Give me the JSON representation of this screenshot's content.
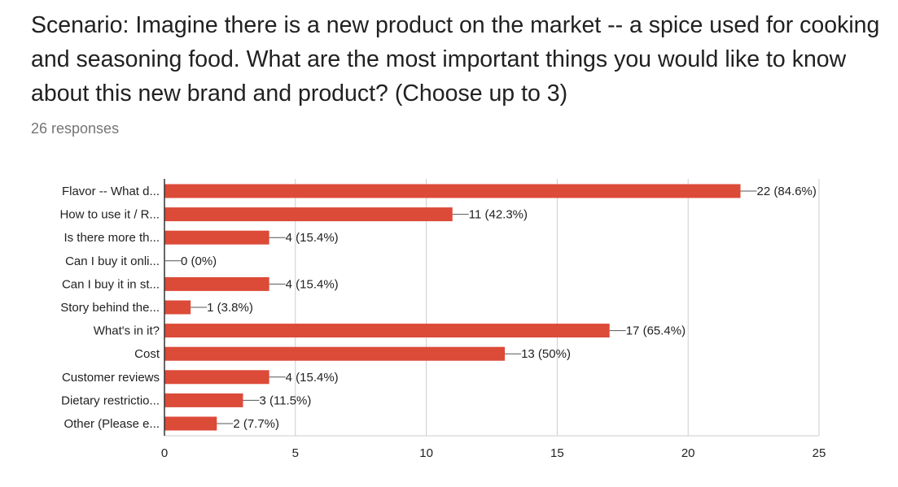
{
  "question": {
    "title": "Scenario: Imagine there is a new product on the market -- a spice used for cooking and seasoning food. What are the most important things you would like to know about this new brand and product? (Choose up to 3)",
    "responses": "26 responses"
  },
  "colors": {
    "bar": "#dc4a38",
    "axis": "#333333",
    "grid": "#cccccc",
    "text": "#222222",
    "muted": "#757575"
  },
  "chart_data": {
    "type": "bar",
    "orientation": "horizontal",
    "categories": [
      "Flavor -- What d...",
      "How to use it / R...",
      "Is there more th...",
      "Can I buy it onli...",
      "Can I buy it in st...",
      "Story behind the...",
      "What's in it?",
      "Cost",
      "Customer reviews",
      "Dietary restrictio...",
      "Other (Please e..."
    ],
    "values": [
      22,
      11,
      4,
      0,
      4,
      1,
      17,
      13,
      4,
      3,
      2
    ],
    "data_labels": [
      "22 (84.6%)",
      "11 (42.3%)",
      "4 (15.4%)",
      "0 (0%)",
      "4 (15.4%)",
      "1 (3.8%)",
      "17 (65.4%)",
      "13 (50%)",
      "4 (15.4%)",
      "3 (11.5%)",
      "2 (7.7%)"
    ],
    "xlim": [
      0,
      25
    ],
    "xticks": [
      0,
      5,
      10,
      15,
      20,
      25
    ],
    "grid": true
  }
}
